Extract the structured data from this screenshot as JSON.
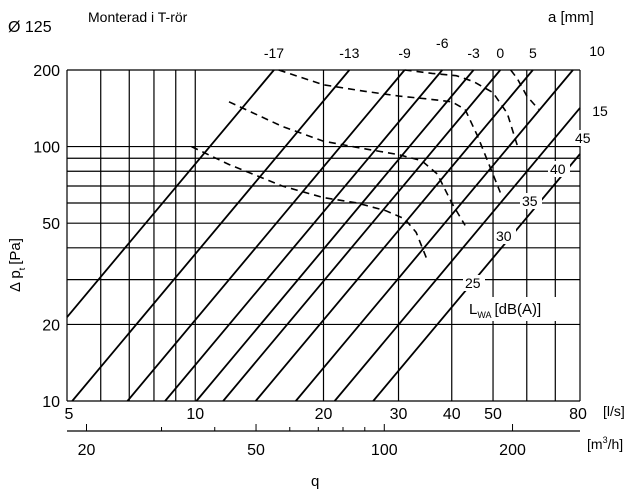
{
  "chart_data": {
    "type": "line",
    "diameter_label": "Ø 125",
    "title": "Monterad i T-rör",
    "a_axis_label": "a [mm]",
    "ylabel_main": "Δ p",
    "ylabel_sub": "t",
    "ylabel_unit": "[Pa]",
    "xlabel": "q",
    "x_unit_ls": "[l/s]",
    "x_unit_m3h_pre": "[m",
    "x_unit_m3h_sup": "3",
    "x_unit_m3h_post": "/h]",
    "lwa_main": "L",
    "lwa_sub": "WA",
    "lwa_unit": "[dB(A)]",
    "x_scale": "log",
    "y_scale": "log",
    "xlim": [
      5,
      80
    ],
    "ylim": [
      10,
      200
    ],
    "x_ticks_ls": [
      "5",
      "10",
      "20",
      "30",
      "40",
      "50",
      "80"
    ],
    "x_ticks_m3h": [
      "20",
      "50",
      "100",
      "200"
    ],
    "y_ticks": [
      "10",
      "20",
      "50",
      "100",
      "200"
    ],
    "grid": true,
    "a_lines": [
      {
        "label": "-17",
        "q_at_200": 15.3
      },
      {
        "label": "-13",
        "q_at_200": 23
      },
      {
        "label": "-9",
        "q_at_200": 31
      },
      {
        "label": "-6",
        "q_at_200": 38
      },
      {
        "label": "-3",
        "q_at_200": 45
      },
      {
        "label": "0",
        "q_at_200": 52
      },
      {
        "label": "5",
        "q_at_200": 62
      },
      {
        "label": "10",
        "q_at_200": 77
      },
      {
        "label": "15",
        "q_at_200": 95
      },
      {
        "label": "",
        "q_at_200": 117
      }
    ],
    "noise_curves": [
      {
        "label": "25",
        "points": [
          [
            9.8,
            100
          ],
          [
            12,
            85
          ],
          [
            16,
            70
          ],
          [
            20,
            63
          ],
          [
            24,
            60
          ],
          [
            28,
            56
          ],
          [
            31,
            52
          ],
          [
            33,
            46
          ],
          [
            35,
            36
          ]
        ]
      },
      {
        "label": "30",
        "points": [
          [
            12,
            150
          ],
          [
            16,
            120
          ],
          [
            20,
            105
          ],
          [
            25,
            98
          ],
          [
            30,
            93
          ],
          [
            34,
            88
          ],
          [
            37,
            78
          ],
          [
            40,
            60
          ],
          [
            43,
            49
          ]
        ]
      },
      {
        "label": "35",
        "points": [
          [
            15.7,
            200
          ],
          [
            20,
            175
          ],
          [
            25,
            165
          ],
          [
            30,
            158
          ],
          [
            35,
            154
          ],
          [
            40,
            150
          ],
          [
            43,
            140
          ],
          [
            46,
            110
          ],
          [
            52,
            66
          ]
        ]
      },
      {
        "label": "40",
        "points": [
          [
            31,
            200
          ],
          [
            36,
            194
          ],
          [
            41,
            190
          ],
          [
            45,
            180
          ],
          [
            50,
            163
          ],
          [
            54,
            135
          ],
          [
            57,
            101
          ]
        ]
      },
      {
        "label": "45",
        "points": [
          [
            55,
            200
          ],
          [
            57,
            185
          ],
          [
            60,
            158
          ],
          [
            64,
            140
          ]
        ]
      }
    ]
  }
}
